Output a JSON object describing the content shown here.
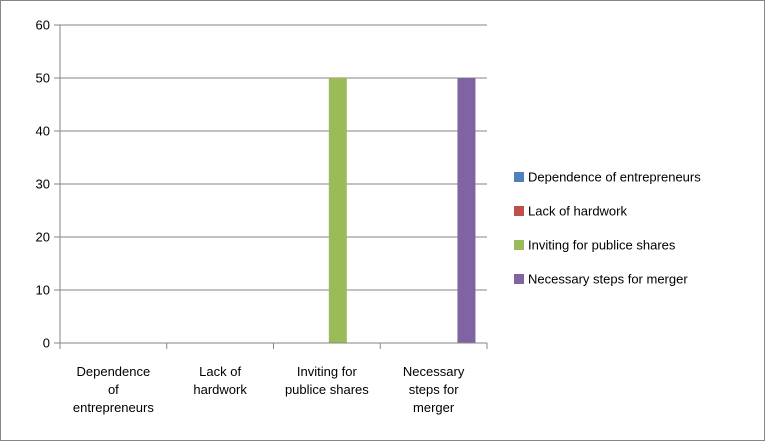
{
  "chart_data": {
    "type": "bar",
    "categories": [
      [
        "Dependence",
        "of",
        "entrepreneurs"
      ],
      [
        "Lack of",
        "hardwork"
      ],
      [
        "Inviting for",
        "publice shares"
      ],
      [
        "Necessary",
        "steps for",
        "merger"
      ]
    ],
    "series": [
      {
        "name": "Dependence of entrepreneurs",
        "color": "#4F81BD",
        "values": [
          0,
          0,
          0,
          0
        ]
      },
      {
        "name": "Lack of hardwork",
        "color": "#C0504D",
        "values": [
          0,
          0,
          0,
          0
        ]
      },
      {
        "name": "Inviting for publice shares",
        "color": "#9BBB59",
        "values": [
          0,
          0,
          50,
          0
        ]
      },
      {
        "name": "Necessary steps for merger",
        "color": "#8064A2",
        "values": [
          0,
          0,
          0,
          50
        ]
      }
    ],
    "ylim": [
      0,
      60
    ],
    "yticks": [
      "0",
      "10",
      "20",
      "30",
      "40",
      "50",
      "60"
    ],
    "grid": true,
    "legend_position": "right"
  }
}
